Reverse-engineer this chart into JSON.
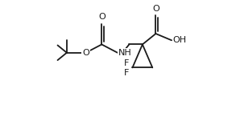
{
  "background_color": "#ffffff",
  "line_color": "#1a1a1a",
  "line_width": 1.3,
  "font_size": 8.0,
  "fig_width": 2.98,
  "fig_height": 1.46,
  "dpi": 100,
  "xlim": [
    -0.5,
    10.5
  ],
  "ylim": [
    -0.5,
    6.5
  ]
}
